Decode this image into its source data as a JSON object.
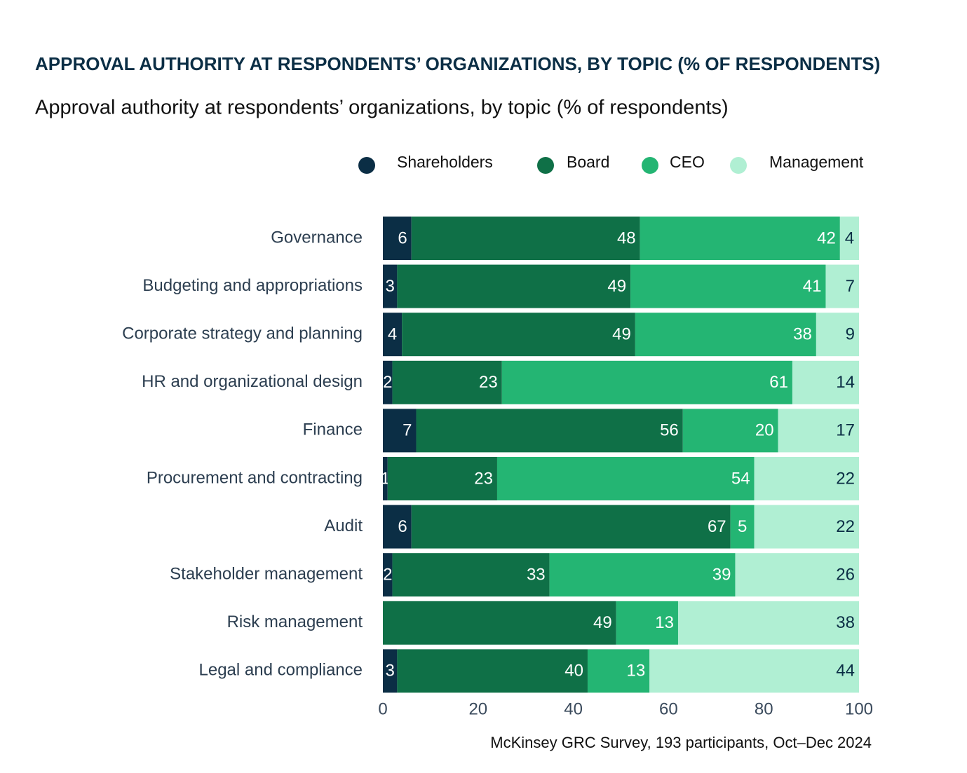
{
  "chart_data": {
    "type": "stacked-bar-horizontal",
    "title": "APPROVAL AUTHORITY AT RESPONDENTS’ ORGANIZATIONS, BY TOPIC (% OF RESPONDENTS)",
    "subtitle": "Approval authority at respondents’ organizations, by topic (% of respondents)",
    "source": "McKinsey GRC Survey, 193 participants, Oct–Dec 2024",
    "legend": "top",
    "categories": [
      "Governance",
      "Budgeting and appropriations",
      "Corporate strategy and planning",
      "HR and organizational design",
      "Finance",
      "Procurement and contracting",
      "Audit",
      "Stakeholder management",
      "Risk management",
      "Legal and compliance"
    ],
    "series": [
      {
        "name": "Shareholders",
        "color": "#0b2e45",
        "label_color": "#ffffff",
        "values": [
          6,
          3,
          4,
          2,
          7,
          1,
          6,
          2,
          null,
          3
        ]
      },
      {
        "name": "Board",
        "color": "#0f7047",
        "label_color": "#ffffff",
        "values": [
          48,
          49,
          49,
          23,
          56,
          23,
          67,
          33,
          49,
          40
        ]
      },
      {
        "name": "CEO",
        "color": "#24b573",
        "label_color": "#ffffff",
        "values": [
          42,
          41,
          38,
          61,
          20,
          54,
          5,
          39,
          13,
          13
        ]
      },
      {
        "name": "Management",
        "color": "#b0efd3",
        "label_color": "#0b2e45",
        "values": [
          4,
          7,
          9,
          14,
          17,
          22,
          22,
          26,
          38,
          44
        ]
      }
    ],
    "xlim": [
      0,
      100
    ],
    "xticks": [
      0,
      20,
      40,
      60,
      80,
      100
    ]
  }
}
